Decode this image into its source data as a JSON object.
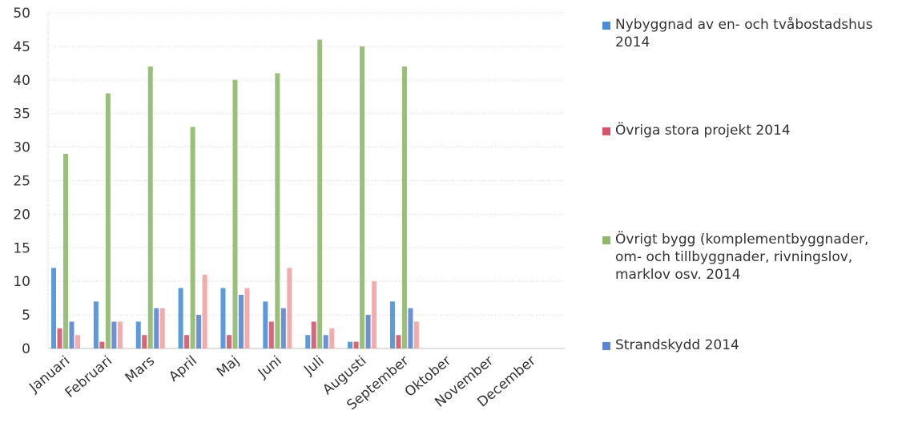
{
  "chart_data": {
    "type": "bar",
    "categories": [
      "Januari",
      "Februari",
      "Mars",
      "April",
      "Maj",
      "Juni",
      "Juli",
      "Augusti",
      "September",
      "Oktober",
      "November",
      "December"
    ],
    "series": [
      {
        "name": "Nybyggnad av en- och tvåbostadshus 2014",
        "color": "#4a8fd6",
        "values": [
          12,
          7,
          4,
          9,
          9,
          7,
          2,
          1,
          7,
          null,
          null,
          null
        ]
      },
      {
        "name": "Övriga stora projekt 2014",
        "color": "#d2556a",
        "values": [
          3,
          1,
          2,
          2,
          2,
          4,
          4,
          1,
          2,
          null,
          null,
          null
        ]
      },
      {
        "name": "Övrigt bygg (komplementbyggnader, om- och tillbyggnader, rivningslov, marklov osv. 2014",
        "color": "#8fb86a",
        "values": [
          29,
          38,
          42,
          33,
          40,
          41,
          46,
          45,
          42,
          null,
          null,
          null
        ]
      },
      {
        "name": "Strandskydd 2014",
        "color": "#5b86d0",
        "values": [
          4,
          4,
          6,
          5,
          8,
          6,
          2,
          5,
          6,
          null,
          null,
          null
        ]
      },
      {
        "name": "",
        "color": "#f2a2a2",
        "values": [
          2,
          4,
          6,
          11,
          9,
          12,
          3,
          10,
          4,
          null,
          null,
          null
        ]
      }
    ],
    "title": "",
    "xlabel": "",
    "ylabel": "",
    "ylim": [
      0,
      50
    ],
    "yticks": [
      0,
      5,
      10,
      15,
      20,
      25,
      30,
      35,
      40,
      45,
      50
    ],
    "grid": true,
    "legend_position": "right"
  }
}
